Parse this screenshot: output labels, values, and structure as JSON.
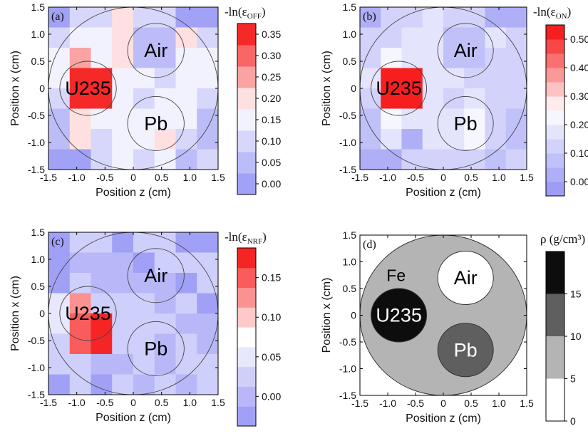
{
  "chart_data": [
    {
      "type": "heatmap",
      "panel_label": "(a)",
      "xlabel": "Position z (cm)",
      "ylabel": "Position x (cm)",
      "xlim": [
        -1.5,
        1.5
      ],
      "ylim": [
        -1.5,
        1.5
      ],
      "x_ticks": [
        "-1.5",
        "-1.0",
        "-0.5",
        "0",
        "0.5",
        "1.0",
        "1.5"
      ],
      "y_ticks": [
        "-1.5",
        "-1.0",
        "-0.5",
        "0",
        "0.5",
        "1.0",
        "1.5"
      ],
      "colorbar": {
        "title_prefix": "-ln(ε",
        "title_sub": "OFF",
        "title_suffix": ")",
        "ticks": [
          "0.00",
          "0.05",
          "0.10",
          "0.15",
          "0.20",
          "0.25",
          "0.30",
          "0.35"
        ],
        "tick_values": [
          0,
          0.05,
          0.1,
          0.15,
          0.2,
          0.25,
          0.3,
          0.35
        ],
        "range": [
          -0.025,
          0.375
        ],
        "levels": 8
      },
      "regions": [
        {
          "label": "Air",
          "cz": 0.4,
          "cx": 0.7,
          "r": 0.5
        },
        {
          "label": "U235",
          "cz": -0.8,
          "cx": 0.0,
          "r": 0.5
        },
        {
          "label": "Pb",
          "cz": 0.4,
          "cx": -0.65,
          "r": 0.5
        }
      ],
      "circle_radius": 1.5,
      "grid_values": [
        [
          0.02,
          0.08,
          0.12,
          0.2,
          0.12,
          0.1,
          0.02,
          0.02
        ],
        [
          0.1,
          0.14,
          0.15,
          0.18,
          0.05,
          0.05,
          0.22,
          0.1
        ],
        [
          0.15,
          0.25,
          0.16,
          0.18,
          0.05,
          0.05,
          0.15,
          0.15
        ],
        [
          0.15,
          0.35,
          0.35,
          0.15,
          0.15,
          0.12,
          0.14,
          0.14
        ],
        [
          0.12,
          0.35,
          0.35,
          0.15,
          0.12,
          0.15,
          0.15,
          0.1
        ],
        [
          0.05,
          0.2,
          0.16,
          0.15,
          0.15,
          0.16,
          0.15,
          0.05
        ],
        [
          0.05,
          0.18,
          0.1,
          0.16,
          0.15,
          0.22,
          0.08,
          0.05
        ],
        [
          0.02,
          0.02,
          0.1,
          0.15,
          0.12,
          0.15,
          0.05,
          0.08
        ]
      ]
    },
    {
      "type": "heatmap",
      "panel_label": "(b)",
      "xlabel": "Position z (cm)",
      "ylabel": "Position x (cm)",
      "xlim": [
        -1.5,
        1.5
      ],
      "ylim": [
        -1.5,
        1.5
      ],
      "x_ticks": [
        "-1.5",
        "-1.0",
        "-0.5",
        "0",
        "0.5",
        "1.0",
        "1.5"
      ],
      "y_ticks": [
        "-1.5",
        "-1.0",
        "-0.5",
        "0",
        "0.5",
        "1.0",
        "1.5"
      ],
      "colorbar": {
        "title_prefix": "-ln(ε",
        "title_sub": "ON",
        "title_suffix": ")",
        "ticks": [
          "0.00",
          "0.10",
          "0.20",
          "0.30",
          "0.40",
          "0.50"
        ],
        "tick_values": [
          0,
          0.1,
          0.2,
          0.3,
          0.4,
          0.5
        ],
        "range": [
          -0.05,
          0.55
        ],
        "levels": 12
      },
      "regions": [
        {
          "label": "Air",
          "cz": 0.4,
          "cx": 0.7,
          "r": 0.5
        },
        {
          "label": "U235",
          "cz": -0.8,
          "cx": 0.0,
          "r": 0.5
        },
        {
          "label": "Pb",
          "cz": 0.4,
          "cx": -0.65,
          "r": 0.5
        }
      ],
      "circle_radius": 1.5,
      "grid_values": [
        [
          0.02,
          0.1,
          0.1,
          0.15,
          0.1,
          0.1,
          0.02,
          0.02
        ],
        [
          0.1,
          0.12,
          0.15,
          0.15,
          0.05,
          0.05,
          0.15,
          0.1
        ],
        [
          0.12,
          0.25,
          0.15,
          0.15,
          0.05,
          0.05,
          0.12,
          0.12
        ],
        [
          0.15,
          0.5,
          0.5,
          0.15,
          0.15,
          0.12,
          0.12,
          0.12
        ],
        [
          0.12,
          0.5,
          0.5,
          0.15,
          0.12,
          0.15,
          0.12,
          0.1
        ],
        [
          0.05,
          0.2,
          0.15,
          0.15,
          0.15,
          0.2,
          0.12,
          0.05
        ],
        [
          0.05,
          0.15,
          0.02,
          0.15,
          0.15,
          0.22,
          0.1,
          0.05
        ],
        [
          0.02,
          0.02,
          0.1,
          0.1,
          0.1,
          0.12,
          0.05,
          0.1
        ]
      ]
    },
    {
      "type": "heatmap",
      "panel_label": "(c)",
      "xlabel": "Position z (cm)",
      "ylabel": "Position x (cm)",
      "xlim": [
        -1.5,
        1.5
      ],
      "ylim": [
        -1.5,
        1.5
      ],
      "x_ticks": [
        "-1.5",
        "-1.0",
        "-0.5",
        "0",
        "0.5",
        "1.0",
        "1.5"
      ],
      "y_ticks": [
        "-1.5",
        "-1.0",
        "-0.5",
        "0",
        "0.5",
        "1.0",
        "1.5"
      ],
      "colorbar": {
        "title_prefix": "-ln(ε",
        "title_sub": "NRF",
        "title_suffix": ")",
        "ticks": [
          "0.00",
          "0.05",
          "0.10",
          "0.15"
        ],
        "tick_values": [
          0,
          0.05,
          0.1,
          0.15
        ],
        "range": [
          -0.0375,
          0.1875
        ],
        "levels": 9
      },
      "regions": [
        {
          "label": "Air",
          "cz": 0.4,
          "cx": 0.7,
          "r": 0.5
        },
        {
          "label": "U235",
          "cz": -0.8,
          "cx": 0.0,
          "r": 0.5
        },
        {
          "label": "Pb",
          "cz": 0.4,
          "cx": -0.65,
          "r": 0.5
        }
      ],
      "circle_radius": 1.5,
      "grid_values": [
        [
          -0.02,
          0.02,
          0.02,
          -0.03,
          0.02,
          0.02,
          -0.02,
          -0.02
        ],
        [
          -0.03,
          0.01,
          0.0,
          0.0,
          -0.02,
          0.02,
          0.02,
          0.02
        ],
        [
          -0.02,
          0.02,
          0.0,
          0.01,
          0.01,
          -0.01,
          -0.02,
          0.02
        ],
        [
          0.05,
          0.12,
          0.02,
          0.02,
          0.02,
          0.01,
          0.02,
          -0.02
        ],
        [
          0.05,
          0.15,
          0.18,
          0.03,
          0.02,
          0.02,
          0.01,
          0.01
        ],
        [
          0.03,
          0.15,
          0.18,
          0.02,
          0.02,
          0.01,
          0.02,
          0.01
        ],
        [
          0.03,
          0.03,
          0.01,
          0.01,
          0.02,
          0.01,
          0.02,
          0.02
        ],
        [
          -0.02,
          0.02,
          -0.02,
          0.02,
          0.01,
          0.02,
          0.01,
          0.02
        ]
      ]
    },
    {
      "type": "map",
      "panel_label": "(d)",
      "xlabel": "Position z (cm)",
      "ylabel": "Position x (cm)",
      "xlim": [
        -1.5,
        1.5
      ],
      "ylim": [
        -1.5,
        1.5
      ],
      "x_ticks": [
        "-1.5",
        "-1.0",
        "-0.5",
        "0",
        "0.5",
        "1.0",
        "1.5"
      ],
      "y_ticks": [
        "-1.5",
        "-1.0",
        "-0.5",
        "0",
        "0.5",
        "1.0",
        "1.5"
      ],
      "colorbar": {
        "title": "ρ (g/cm³)",
        "ticks": [
          "0",
          "5",
          "10",
          "15"
        ],
        "tick_values": [
          0,
          5,
          10,
          15
        ],
        "range": [
          0,
          20
        ],
        "band_colors": [
          "#ffffff",
          "#b4b4b4",
          "#5f5f5f",
          "#0d0d0d"
        ]
      },
      "background_label": "Fe",
      "circle_radius": 1.5,
      "materials": [
        {
          "label": "Fe",
          "density_band": 5,
          "color": "#b4b4b4"
        },
        {
          "label": "Air",
          "cz": 0.4,
          "cx": 0.7,
          "r": 0.5,
          "density": 0,
          "color": "#ffffff",
          "text_color": "#000000"
        },
        {
          "label": "U235",
          "cz": -0.8,
          "cx": 0.0,
          "r": 0.5,
          "density": 19,
          "color": "#0d0d0d",
          "text_color": "#ffffff"
        },
        {
          "label": "Pb",
          "cz": 0.4,
          "cx": -0.65,
          "r": 0.5,
          "density": 11,
          "color": "#5f5f5f",
          "text_color": "#ffffff"
        }
      ]
    }
  ]
}
